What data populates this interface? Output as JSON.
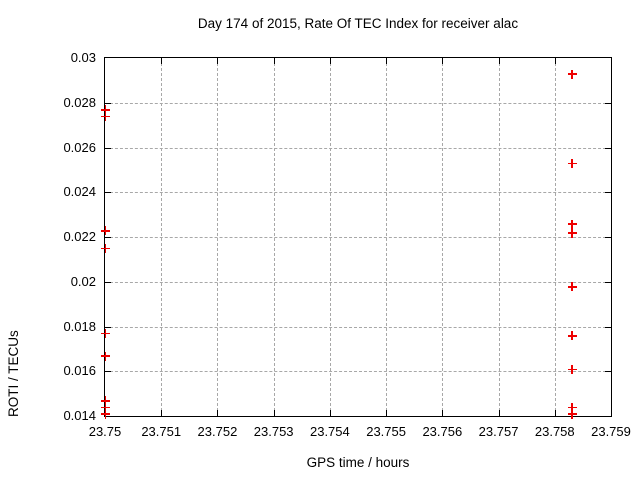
{
  "colors": {
    "background": "#ffffff",
    "axis": "#000000",
    "grid": "#a8a8a8",
    "marker": "#ee0000",
    "text": "#000000"
  },
  "chart_data": {
    "type": "scatter",
    "title": "Day 174 of 2015, Rate Of TEC Index for receiver alac",
    "xlabel": "GPS time / hours",
    "ylabel": "ROTI / TECUs",
    "xlim": [
      23.75,
      23.759
    ],
    "ylim": [
      0.014,
      0.03
    ],
    "grid": true,
    "legend": "none",
    "marker": {
      "shape": "plus",
      "size": 9,
      "color": "#ee0000"
    },
    "xticks": [
      {
        "v": 23.75,
        "label": "23.75"
      },
      {
        "v": 23.751,
        "label": "23.751"
      },
      {
        "v": 23.752,
        "label": "23.752"
      },
      {
        "v": 23.753,
        "label": "23.753"
      },
      {
        "v": 23.754,
        "label": "23.754"
      },
      {
        "v": 23.755,
        "label": "23.755"
      },
      {
        "v": 23.756,
        "label": "23.756"
      },
      {
        "v": 23.757,
        "label": "23.757"
      },
      {
        "v": 23.758,
        "label": "23.758"
      },
      {
        "v": 23.759,
        "label": "23.759"
      }
    ],
    "yticks": [
      {
        "v": 0.03,
        "label": "0.03"
      },
      {
        "v": 0.028,
        "label": "0.028"
      },
      {
        "v": 0.026,
        "label": "0.026"
      },
      {
        "v": 0.024,
        "label": "0.024"
      },
      {
        "v": 0.022,
        "label": "0.022"
      },
      {
        "v": 0.02,
        "label": "0.02"
      },
      {
        "v": 0.018,
        "label": "0.018"
      },
      {
        "v": 0.016,
        "label": "0.016"
      },
      {
        "v": 0.014,
        "label": "0.014"
      }
    ],
    "series": [
      {
        "name": "ROTI",
        "color": "#ee0000",
        "points": [
          [
            23.75,
            0.0277
          ],
          [
            23.75,
            0.0274
          ],
          [
            23.75,
            0.0223
          ],
          [
            23.75,
            0.0215
          ],
          [
            23.75,
            0.0177
          ],
          [
            23.75,
            0.0167
          ],
          [
            23.75,
            0.0147
          ],
          [
            23.75,
            0.0144
          ],
          [
            23.75,
            0.0141
          ],
          [
            23.7583,
            0.0293
          ],
          [
            23.7583,
            0.0253
          ],
          [
            23.7583,
            0.0226
          ],
          [
            23.7583,
            0.0222
          ],
          [
            23.7583,
            0.0198
          ],
          [
            23.7583,
            0.0176
          ],
          [
            23.7583,
            0.0161
          ],
          [
            23.7583,
            0.0144
          ],
          [
            23.7583,
            0.0141
          ]
        ]
      }
    ]
  }
}
